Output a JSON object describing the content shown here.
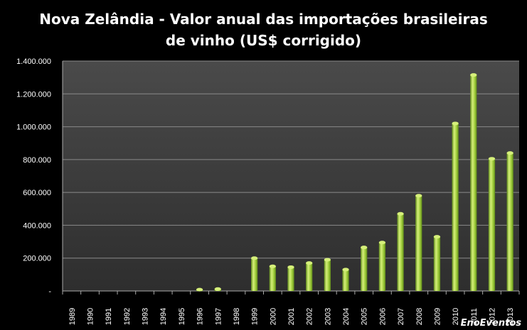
{
  "chart_data": {
    "type": "bar",
    "title_line1": "Nova Zelândia - Valor anual das importações  brasileiras",
    "title_line2": "de vinho (US$ corrigido)",
    "xlabel": "",
    "ylabel": "",
    "categories": [
      "1989",
      "1990",
      "1991",
      "1992",
      "1993",
      "1994",
      "1995",
      "1996",
      "1997",
      "1998",
      "1999",
      "2000",
      "2001",
      "2002",
      "2003",
      "2004",
      "2005",
      "2006",
      "2007",
      "2008",
      "2009",
      "2010",
      "2011",
      "2012",
      "2013"
    ],
    "values": [
      0,
      0,
      0,
      0,
      0,
      0,
      0,
      8000,
      12000,
      0,
      200000,
      150000,
      145000,
      170000,
      190000,
      130000,
      265000,
      295000,
      470000,
      580000,
      330000,
      1020000,
      1315000,
      805000,
      840000
    ],
    "ylim": [
      0,
      1400000
    ],
    "yticks": [
      0,
      200000,
      400000,
      600000,
      800000,
      1000000,
      1200000,
      1400000
    ],
    "ytick_labels": [
      "-",
      "200.000",
      "400.000",
      "600.000",
      "800.000",
      "1.000.000",
      "1.200.000",
      "1.400.000"
    ],
    "grid": true,
    "legend": "none",
    "colors": {
      "background": "#000000",
      "plot_background": "#3d3d3d",
      "bar_light": "#d6f07a",
      "bar_mid": "#9fcc3b",
      "bar_dark": "#5f8a1a",
      "gridline": "#8a8a8a"
    }
  },
  "watermark": "EnoEventos"
}
